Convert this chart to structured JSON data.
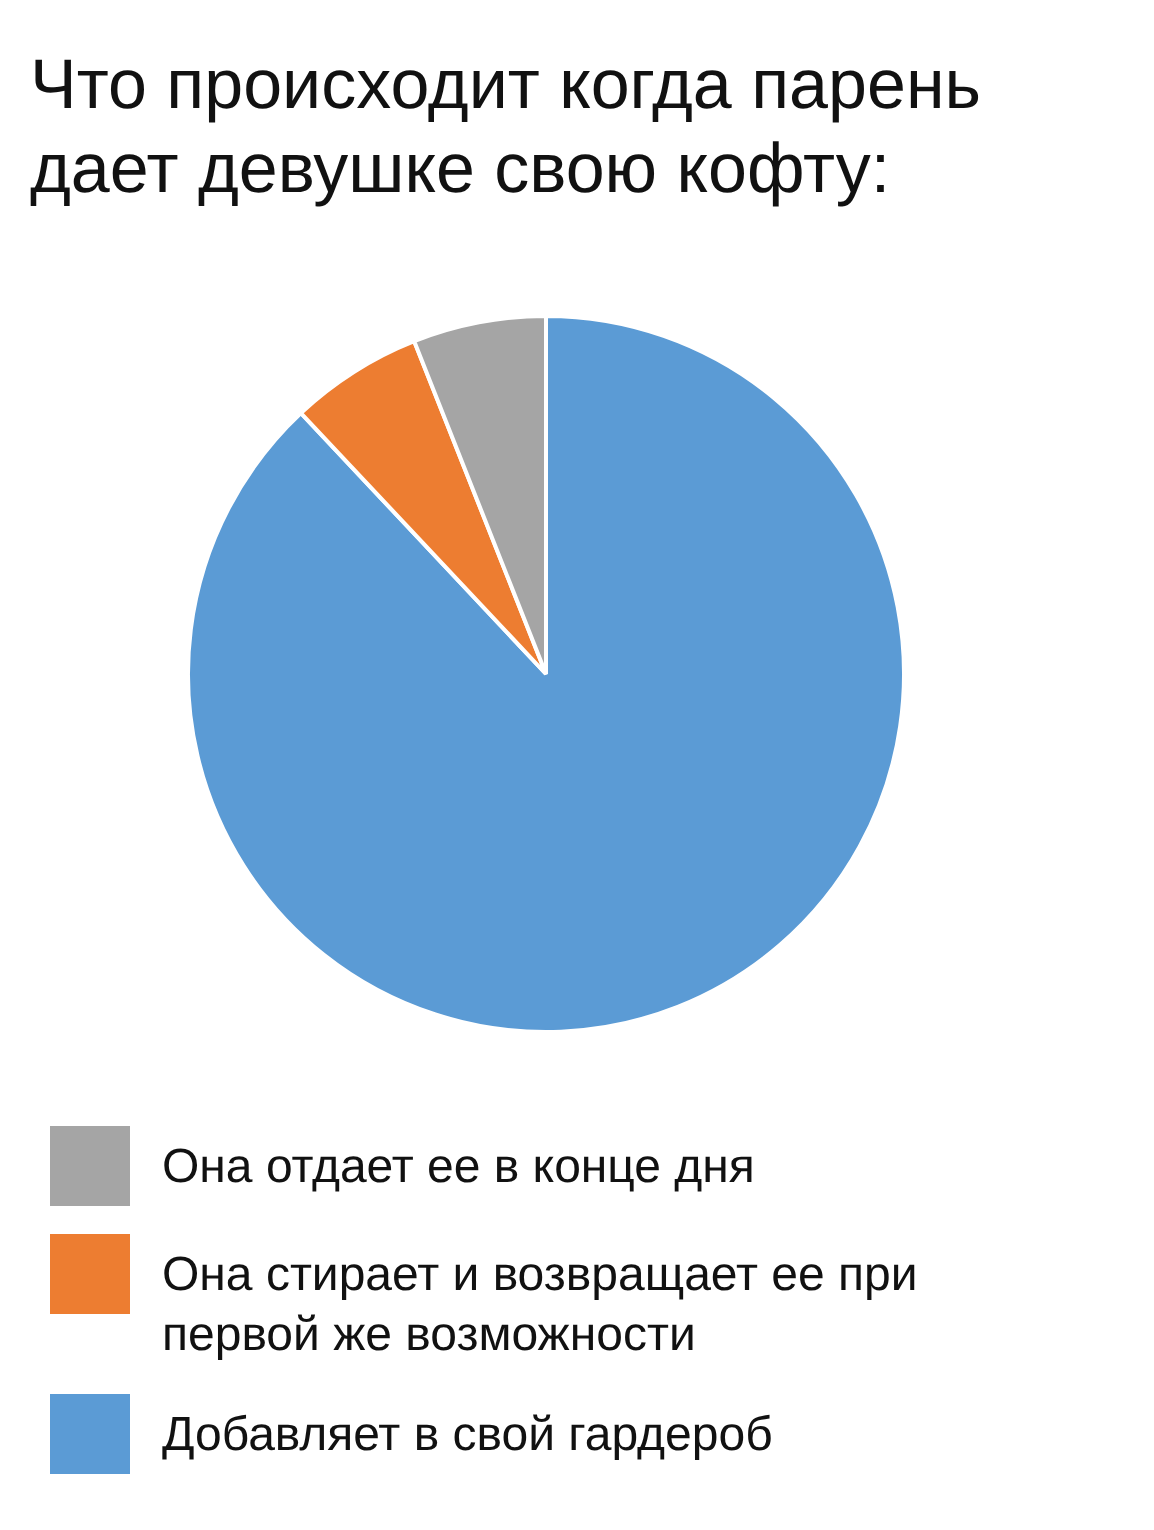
{
  "chart_data": {
    "type": "pie",
    "title": "Что происходит когда парень дает девушке свою кофту:",
    "categories": [
      "Она отдает ее в конце дня",
      "Она стирает и возвращает ее при первой же возможности",
      "Добавляет в свой гардероб"
    ],
    "values": [
      6,
      6,
      88
    ],
    "colors": [
      "#a5a5a5",
      "#ed7d31",
      "#5b9bd5"
    ],
    "legend": "bottom"
  }
}
